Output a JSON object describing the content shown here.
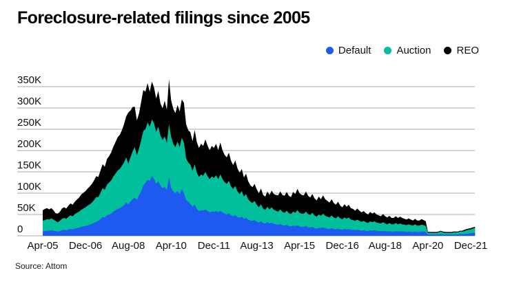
{
  "header": {
    "title": "Foreclosure-related filings since 2005"
  },
  "footer": {
    "source": "Source: Attom"
  },
  "chart_data": {
    "type": "area",
    "stacked": true,
    "title": "Foreclosure-related filings since 2005",
    "source": "Attom",
    "x_unit": "month",
    "x_range": [
      "Apr-2005",
      "Feb-2022"
    ],
    "n_points": 203,
    "x_tick_labels": [
      "Apr-05",
      "Dec-06",
      "Aug-08",
      "Apr-10",
      "Dec-11",
      "Aug-13",
      "Apr-15",
      "Dec-16",
      "Aug-18",
      "Apr-20",
      "Dec-21"
    ],
    "x_tick_indices": [
      0,
      20,
      40,
      60,
      80,
      100,
      120,
      140,
      160,
      180,
      200
    ],
    "y_tick_labels": [
      "0",
      "50K",
      "100K",
      "150K",
      "200K",
      "250K",
      "300K",
      "350K"
    ],
    "ylim_filings": [
      0,
      350000
    ],
    "values_unit": "thousands of filings per month",
    "grid": "horizontal",
    "legend_position": "top-right",
    "gridline_color": "#a7a7a7",
    "series": [
      {
        "name": "Default",
        "color": "#1e5af0",
        "values_thousands": [
          10,
          11,
          12,
          12,
          13,
          12,
          11,
          10,
          11,
          13,
          14,
          13,
          15,
          16,
          15,
          17,
          18,
          19,
          21,
          22,
          23,
          25,
          26,
          28,
          30,
          33,
          35,
          39,
          44,
          43,
          48,
          50,
          52,
          57,
          60,
          63,
          65,
          68,
          72,
          78,
          74,
          80,
          86,
          90,
          84,
          95,
          104,
          118,
          124,
          132,
          128,
          141,
          133,
          122,
          128,
          118,
          112,
          115,
          108,
          139,
          112,
          104,
          100,
          105,
          98,
          110,
          100,
          84,
          80,
          75,
          68,
          73,
          63,
          58,
          60,
          59,
          62,
          58,
          55,
          57,
          56,
          58,
          55,
          59,
          55,
          52,
          50,
          53,
          48,
          46,
          49,
          44,
          42,
          45,
          40,
          42,
          38,
          36,
          35,
          37,
          33,
          31,
          34,
          30,
          29,
          32,
          29,
          31,
          28,
          27,
          26,
          28,
          25,
          24,
          26,
          23,
          22,
          24,
          23,
          25,
          22,
          21,
          21,
          23,
          20,
          19,
          21,
          18,
          17,
          19,
          18,
          20,
          18,
          17,
          16,
          18,
          16,
          15,
          17,
          15,
          14,
          16,
          15,
          16,
          14,
          14,
          13,
          14,
          13,
          12,
          13,
          12,
          11,
          13,
          12,
          13,
          12,
          11,
          11,
          12,
          11,
          10,
          11,
          10,
          10,
          11,
          10,
          11,
          10,
          10,
          9,
          10,
          9,
          9,
          10,
          9,
          9,
          10,
          10,
          9,
          3,
          3,
          3,
          3,
          3,
          3,
          4,
          3,
          3,
          3,
          3,
          3,
          3,
          3,
          3,
          4,
          4,
          4,
          5,
          5,
          6,
          7,
          7
        ]
      },
      {
        "name": "Auction",
        "color": "#00bf9a",
        "values_thousands": [
          25,
          26,
          27,
          26,
          28,
          26,
          24,
          22,
          24,
          27,
          28,
          27,
          30,
          32,
          31,
          34,
          36,
          38,
          40,
          42,
          44,
          46,
          48,
          50,
          54,
          58,
          56,
          62,
          68,
          65,
          72,
          75,
          78,
          82,
          86,
          90,
          92,
          96,
          100,
          106,
          95,
          104,
          112,
          118,
          105,
          110,
          120,
          128,
          126,
          134,
          128,
          132,
          131,
          122,
          128,
          117,
          113,
          118,
          110,
          123,
          120,
          112,
          108,
          116,
          110,
          120,
          118,
          98,
          92,
          92,
          84,
          95,
          85,
          80,
          84,
          82,
          88,
          82,
          78,
          82,
          80,
          84,
          78,
          85,
          78,
          74,
          72,
          76,
          68,
          64,
          68,
          60,
          56,
          60,
          52,
          56,
          48,
          44,
          42,
          45,
          40,
          36,
          40,
          34,
          32,
          36,
          33,
          36,
          33,
          32,
          31,
          34,
          31,
          30,
          33,
          30,
          29,
          33,
          31,
          35,
          32,
          31,
          31,
          34,
          31,
          30,
          33,
          30,
          28,
          31,
          29,
          32,
          29,
          28,
          27,
          30,
          27,
          26,
          29,
          26,
          25,
          27,
          25,
          27,
          24,
          23,
          22,
          24,
          22,
          21,
          22,
          20,
          19,
          21,
          20,
          21,
          19,
          19,
          18,
          20,
          18,
          17,
          19,
          17,
          17,
          19,
          17,
          18,
          17,
          16,
          16,
          17,
          16,
          15,
          17,
          15,
          15,
          16,
          15,
          14,
          4,
          4,
          4,
          4,
          4,
          5,
          6,
          5,
          4,
          4,
          4,
          4,
          5,
          5,
          5,
          6,
          6,
          7,
          8,
          9,
          9,
          10,
          11
        ]
      },
      {
        "name": "REO",
        "color": "#000000",
        "values_thousands": [
          25,
          26,
          26,
          24,
          24,
          22,
          18,
          20,
          21,
          24,
          25,
          24,
          26,
          28,
          27,
          29,
          31,
          33,
          36,
          37,
          38,
          40,
          42,
          44,
          46,
          49,
          47,
          52,
          56,
          54,
          60,
          62,
          66,
          70,
          74,
          78,
          80,
          84,
          90,
          96,
          120,
          110,
          104,
          95,
          82,
          82,
          90,
          96,
          88,
          92,
          82,
          89,
          84,
          78,
          84,
          76,
          74,
          84,
          78,
          105,
          86,
          82,
          80,
          86,
          84,
          90,
          94,
          80,
          76,
          76,
          70,
          80,
          72,
          68,
          72,
          70,
          76,
          72,
          68,
          72,
          70,
          74,
          68,
          75,
          68,
          64,
          62,
          66,
          60,
          56,
          60,
          54,
          50,
          52,
          45,
          48,
          42,
          39,
          37,
          40,
          36,
          33,
          37,
          32,
          31,
          36,
          34,
          39,
          37,
          37,
          38,
          42,
          40,
          40,
          44,
          41,
          40,
          46,
          44,
          50,
          46,
          44,
          43,
          47,
          43,
          41,
          44,
          40,
          38,
          42,
          39,
          43,
          39,
          37,
          35,
          38,
          34,
          32,
          34,
          30,
          28,
          31,
          28,
          30,
          27,
          26,
          24,
          26,
          24,
          22,
          23,
          21,
          20,
          22,
          20,
          21,
          19,
          18,
          17,
          19,
          17,
          16,
          17,
          15,
          15,
          16,
          15,
          16,
          15,
          14,
          13,
          14,
          13,
          12,
          13,
          12,
          12,
          13,
          12,
          11,
          2,
          2,
          2,
          2,
          2,
          2,
          2,
          2,
          2,
          2,
          2,
          2,
          2,
          2,
          2,
          2,
          2,
          3,
          3,
          3,
          3,
          3,
          3
        ]
      }
    ]
  }
}
